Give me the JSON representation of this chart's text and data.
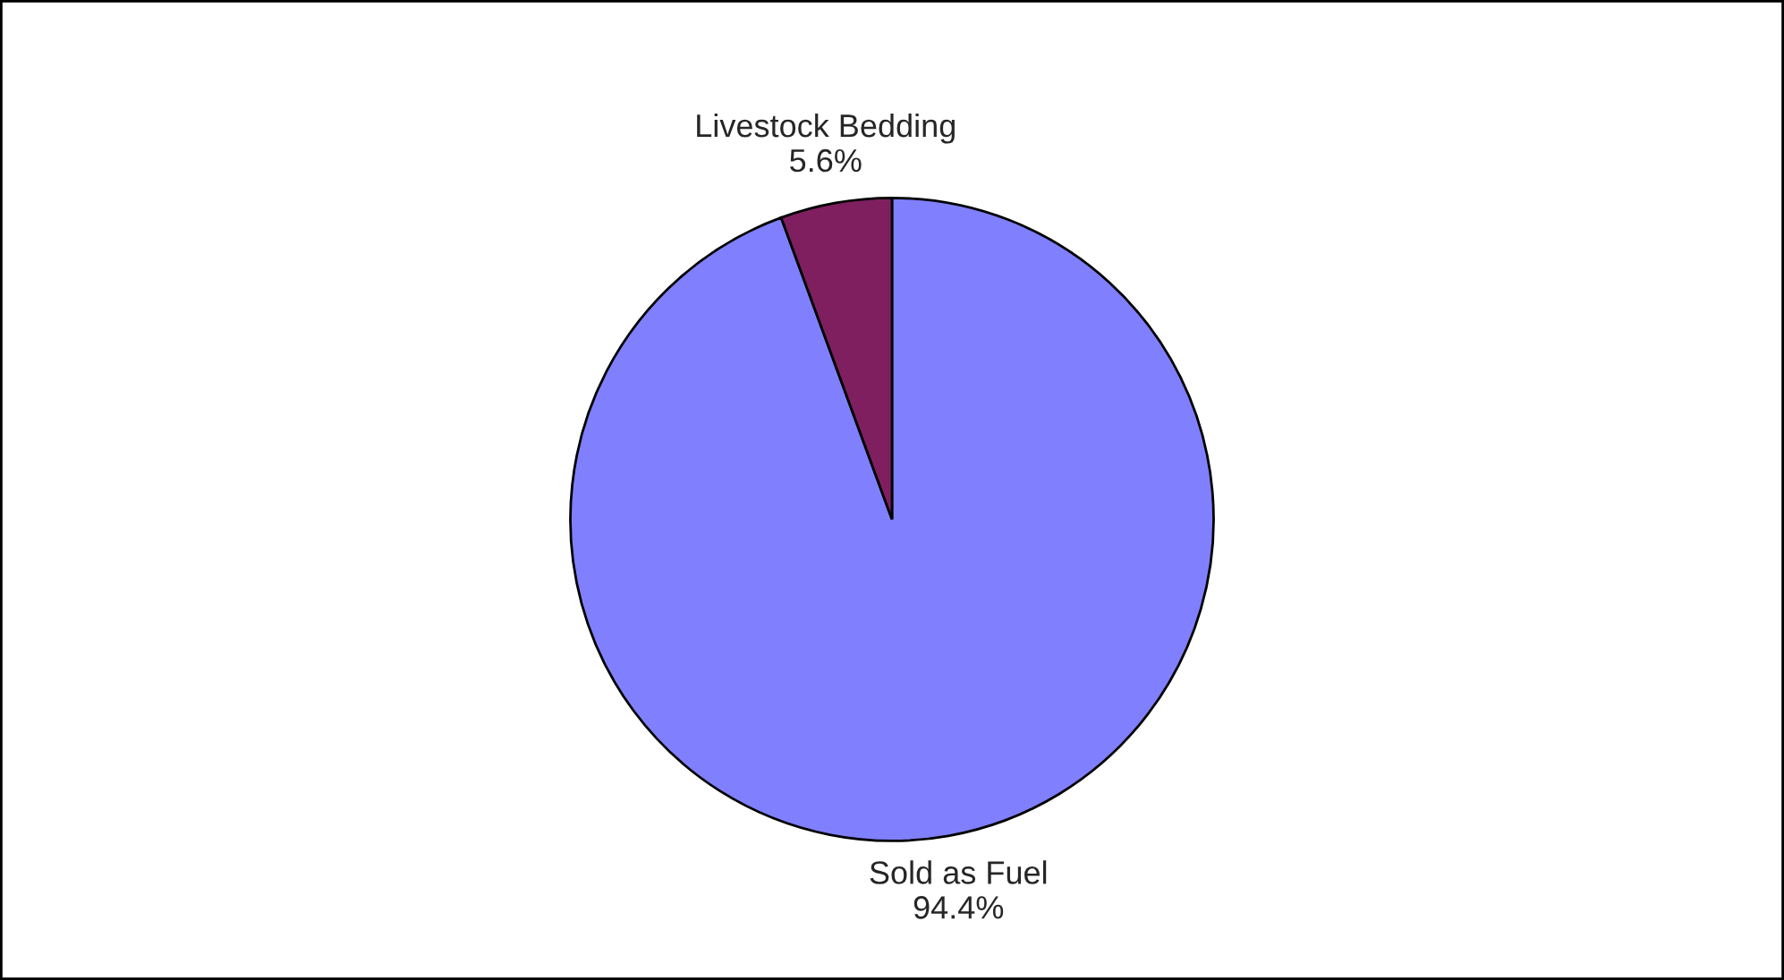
{
  "chart_data": {
    "type": "pie",
    "categories": [
      "Sold as Fuel",
      "Livestock Bedding"
    ],
    "values": [
      94.4,
      5.6
    ],
    "colors": [
      "#8080ff",
      "#7f1f5f"
    ],
    "value_labels": [
      "94.4%",
      "5.6%"
    ],
    "legend": false
  }
}
